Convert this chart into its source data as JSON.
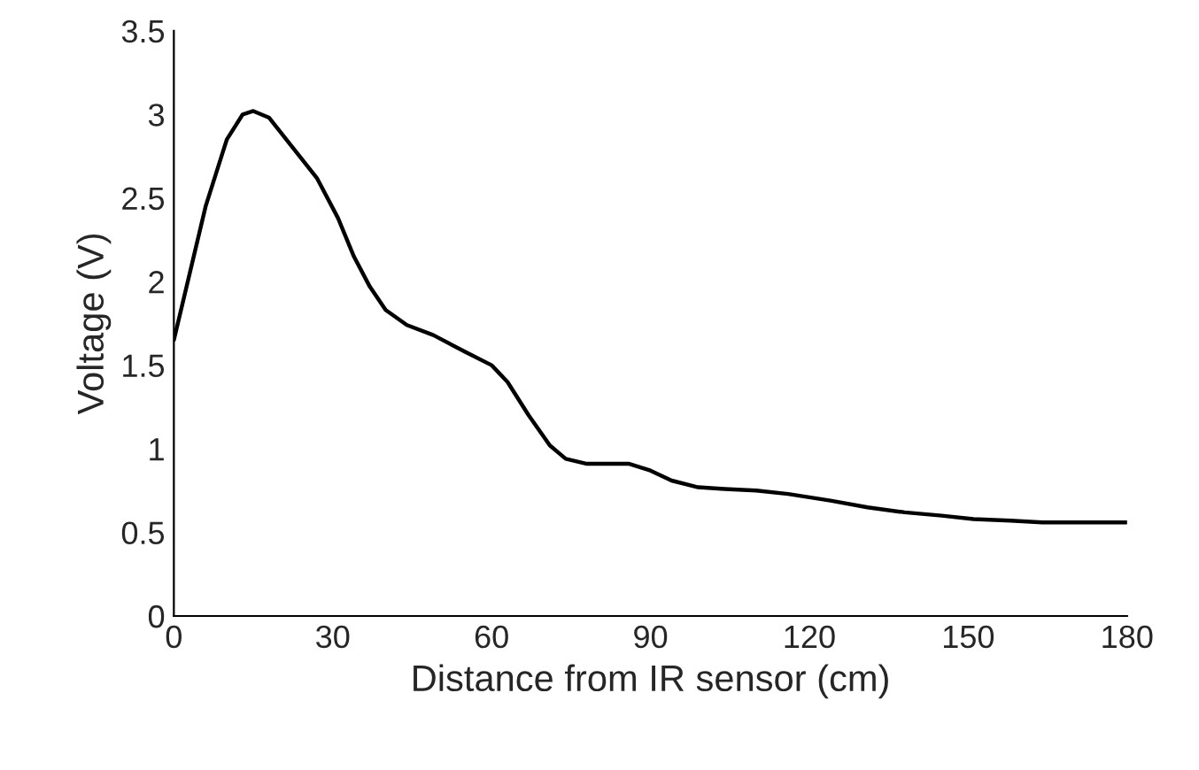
{
  "chart_data": {
    "type": "line",
    "xlabel": "Distance from IR sensor (cm)",
    "ylabel": "Voltage (V)",
    "xlim": [
      0,
      180
    ],
    "xticks": [
      0,
      30,
      60,
      90,
      120,
      150,
      180
    ],
    "ylim": [
      0,
      3.5
    ],
    "yticks": [
      0,
      0.5,
      1,
      1.5,
      2,
      2.5,
      3,
      3.5
    ],
    "grid": false,
    "legend": false,
    "line_style": "solid",
    "marker": "none",
    "series": [
      {
        "color": "#000000",
        "x": [
          0,
          3,
          6,
          10,
          13,
          15,
          18,
          22,
          27,
          31,
          34,
          37,
          40,
          44,
          49,
          55,
          60,
          63,
          67,
          71,
          74,
          78,
          82,
          86,
          90,
          94,
          99,
          104,
          110,
          116,
          124,
          131,
          138,
          145,
          151,
          158,
          164,
          172,
          180
        ],
        "values": [
          1.65,
          2.05,
          2.45,
          2.85,
          3.0,
          3.02,
          2.98,
          2.82,
          2.62,
          2.38,
          2.15,
          1.97,
          1.83,
          1.74,
          1.68,
          1.58,
          1.5,
          1.4,
          1.2,
          1.02,
          0.94,
          0.91,
          0.91,
          0.91,
          0.87,
          0.81,
          0.77,
          0.76,
          0.75,
          0.73,
          0.69,
          0.65,
          0.62,
          0.6,
          0.58,
          0.57,
          0.56,
          0.56,
          0.56
        ]
      }
    ]
  }
}
